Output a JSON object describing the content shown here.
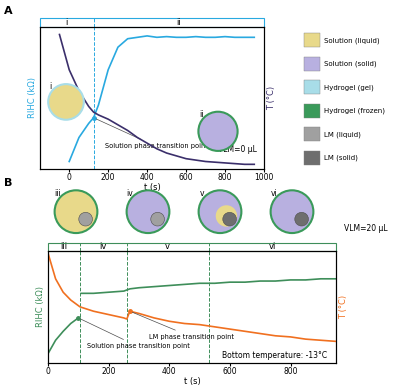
{
  "chart_data": [
    {
      "type": "line",
      "panel_label": "A",
      "x": [
        -100,
        -50,
        0,
        50,
        100,
        125,
        150,
        200,
        250,
        300,
        350,
        400,
        450,
        500,
        550,
        600,
        650,
        700,
        750,
        800,
        850,
        900,
        950
      ],
      "xlim": [
        -150,
        1000
      ],
      "xticks": [
        0,
        200,
        400,
        600,
        800,
        1000
      ],
      "ylim": [
        0,
        10
      ],
      "y2lim": [
        0,
        10
      ],
      "tick_labels": "x",
      "x_label": "t (s)",
      "y_label": "RIHC (kΩ)",
      "y2_label": "T (°C)",
      "regions": {
        "boundaries": [
          -150,
          125,
          1000
        ],
        "labels": [
          "i",
          "ii"
        ]
      },
      "series": [
        {
          "color": "#29a9e0",
          "axis": "y",
          "values": [
            null,
            null,
            0.5,
            2.2,
            3.2,
            3.6,
            4.5,
            7.0,
            8.6,
            9.2,
            9.3,
            9.4,
            9.3,
            9.35,
            9.3,
            9.3,
            9.35,
            9.3,
            9.3,
            9.35,
            9.3,
            9.3,
            9.3
          ],
          "annotation": {
            "text": "Solution phase transition point",
            "x": 125
          }
        },
        {
          "color": "#3b2f6b",
          "axis": "y2",
          "values": [
            null,
            9.5,
            7.0,
            5.5,
            4.4,
            4.0,
            3.8,
            3.5,
            3.1,
            2.7,
            2.2,
            1.8,
            1.4,
            1.1,
            0.9,
            0.7,
            0.6,
            0.5,
            0.45,
            0.4,
            0.35,
            0.3,
            0.3
          ]
        }
      ],
      "notes": [
        "VLM=0 μL"
      ],
      "legend_items": [
        {
          "name": "Solution (liquid)",
          "color": "#e8d98a"
        },
        {
          "name": "Solution (solid)",
          "color": "#b8b0e0"
        },
        {
          "name": "Hydrogel (gel)",
          "color": "#a8dde8"
        },
        {
          "name": "Hydrogel (frozen)",
          "color": "#3a9a5a"
        },
        {
          "name": "LM (liquid)",
          "color": "#a0a0a0"
        },
        {
          "name": "LM (solid)",
          "color": "#6e6e6e"
        }
      ]
    },
    {
      "type": "line",
      "panel_label": "B",
      "x": [
        0,
        25,
        50,
        75,
        100,
        105,
        110,
        150,
        200,
        250,
        260,
        270,
        300,
        350,
        400,
        450,
        500,
        550,
        600,
        650,
        700,
        750,
        800,
        850,
        900,
        950
      ],
      "xlim": [
        0,
        950
      ],
      "xticks": [
        0,
        200,
        400,
        600,
        800
      ],
      "ylim": [
        0,
        10
      ],
      "y2lim": [
        0,
        10
      ],
      "tick_labels": "x",
      "x_label": "t (s)",
      "y_label": "RIHC (kΩ)",
      "y2_label": "T (°C)",
      "regions": {
        "boundaries": [
          0,
          105,
          260,
          530,
          950
        ],
        "labels": [
          "iii",
          "iv",
          "v",
          "vi"
        ]
      },
      "series": [
        {
          "color": "#3e8e5a",
          "axis": "y",
          "values": [
            0.8,
            2.0,
            2.8,
            3.5,
            4.0,
            null,
            6.2,
            6.2,
            6.3,
            6.4,
            6.5,
            6.6,
            6.7,
            6.8,
            6.9,
            7.0,
            7.1,
            7.1,
            7.2,
            7.2,
            7.3,
            7.3,
            7.4,
            7.4,
            7.5,
            7.5
          ],
          "annotation": {
            "text": "Solution phase transition point",
            "x": 100
          }
        },
        {
          "color": "#f07020",
          "axis": "y2",
          "values": [
            9.8,
            7.5,
            6.3,
            5.6,
            5.1,
            5.0,
            4.95,
            4.6,
            4.3,
            4.0,
            3.9,
            4.6,
            4.4,
            4.0,
            3.7,
            3.5,
            3.4,
            3.2,
            3.0,
            2.8,
            2.6,
            2.4,
            2.3,
            2.1,
            2.0,
            1.9
          ],
          "annotation": {
            "text": "LM phase transition point",
            "x": 270
          }
        }
      ],
      "notes": [
        "Bottom temperature: -13°C",
        "VLM=20 μL"
      ]
    }
  ]
}
